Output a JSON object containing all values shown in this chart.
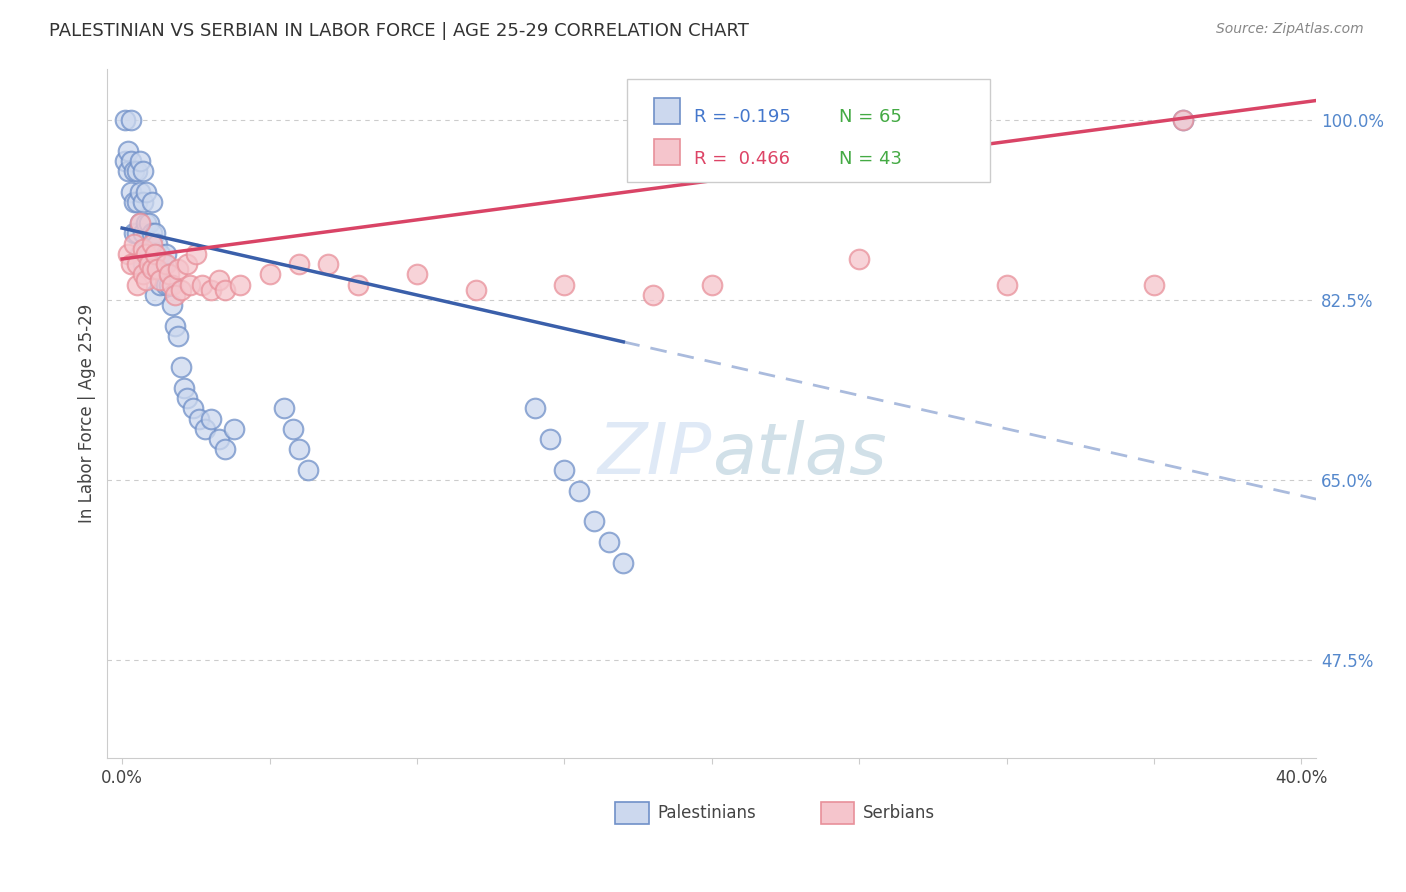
{
  "title": "PALESTINIAN VS SERBIAN IN LABOR FORCE | AGE 25-29 CORRELATION CHART",
  "source": "Source: ZipAtlas.com",
  "ylabel": "In Labor Force | Age 25-29",
  "xlim": [
    -0.005,
    0.405
  ],
  "ylim": [
    0.38,
    1.05
  ],
  "xtick_positions": [
    0.0,
    0.05,
    0.1,
    0.15,
    0.2,
    0.25,
    0.3,
    0.35,
    0.4
  ],
  "xtick_labels": [
    "0.0%",
    "",
    "",
    "",
    "",
    "",
    "",
    "",
    "40.0%"
  ],
  "ytick_positions": [
    0.475,
    0.65,
    0.825,
    1.0
  ],
  "ytick_labels": [
    "47.5%",
    "65.0%",
    "82.5%",
    "100.0%"
  ],
  "palestinian_color": "#7090c8",
  "serbian_color": "#e8909a",
  "regression_blue_solid_color": "#3a5faa",
  "regression_blue_dashed_color": "#aabbdd",
  "regression_pink_color": "#d94466",
  "r_palestinian": -0.195,
  "n_palestinian": 65,
  "r_serbian": 0.466,
  "n_serbian": 43,
  "background_color": "#ffffff",
  "grid_color": "#cccccc",
  "watermark_color": "#c5d8f0",
  "legend_r_blue": "#4477cc",
  "legend_n_blue": "#44aa44",
  "legend_r_pink": "#dd4466",
  "legend_n_pink": "#44aa44",
  "axis_label_color": "#444444",
  "right_tick_color": "#5588cc"
}
